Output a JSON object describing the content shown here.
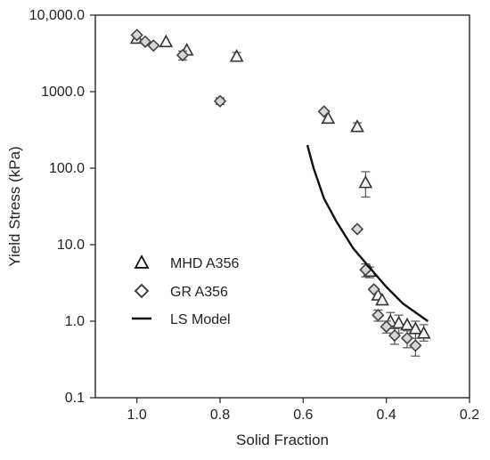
{
  "chart_data": {
    "type": "scatter",
    "title": "",
    "xlabel": "Solid Fraction",
    "ylabel": "Yield Stress (kPa)",
    "x_reversed": true,
    "xlim": [
      1.1,
      0.2
    ],
    "ylim": [
      0.1,
      10000
    ],
    "yscale": "log",
    "grid": false,
    "legend_position": "lower-left",
    "x_ticks": [
      {
        "value": 1.0,
        "label": "1.0"
      },
      {
        "value": 0.8,
        "label": "0.8"
      },
      {
        "value": 0.6,
        "label": "0.6"
      },
      {
        "value": 0.4,
        "label": "0.4"
      },
      {
        "value": 0.2,
        "label": "0.2"
      }
    ],
    "y_ticks": [
      {
        "value": 0.1,
        "label": "0.1"
      },
      {
        "value": 1,
        "label": "1.0"
      },
      {
        "value": 10,
        "label": "10.0"
      },
      {
        "value": 100,
        "label": "100.0"
      },
      {
        "value": 1000,
        "label": "1000.0"
      },
      {
        "value": 10000,
        "label": "10,000.0"
      }
    ],
    "series": [
      {
        "name": "MHD A356",
        "marker": "triangle",
        "color": "#333333",
        "points": [
          {
            "x": 1.0,
            "y": 5000,
            "err": [
              4600,
              5600
            ]
          },
          {
            "x": 0.93,
            "y": 4500,
            "err": null
          },
          {
            "x": 0.88,
            "y": 3500,
            "err": null
          },
          {
            "x": 0.76,
            "y": 2900,
            "err": [
              2650,
              3250
            ]
          },
          {
            "x": 0.54,
            "y": 450,
            "err": null
          },
          {
            "x": 0.47,
            "y": 350,
            "err": [
              330,
              390
            ]
          },
          {
            "x": 0.45,
            "y": 65,
            "err": [
              42,
              90
            ]
          },
          {
            "x": 0.44,
            "y": 4.5,
            "err": [
              3.7,
              5.1
            ]
          },
          {
            "x": 0.42,
            "y": 2.2,
            "err": null
          },
          {
            "x": 0.41,
            "y": 1.9,
            "err": null
          },
          {
            "x": 0.39,
            "y": 1.0,
            "err": [
              0.8,
              1.3
            ]
          },
          {
            "x": 0.37,
            "y": 0.95,
            "err": [
              0.7,
              1.2
            ]
          },
          {
            "x": 0.35,
            "y": 0.9,
            "err": null
          },
          {
            "x": 0.33,
            "y": 0.8,
            "err": [
              0.6,
              1.0
            ]
          },
          {
            "x": 0.31,
            "y": 0.7,
            "err": [
              0.55,
              0.9
            ]
          }
        ]
      },
      {
        "name": "GR A356",
        "marker": "diamond",
        "color": "#444444",
        "points": [
          {
            "x": 1.0,
            "y": 5500,
            "err": null
          },
          {
            "x": 0.98,
            "y": 4500,
            "err": null
          },
          {
            "x": 0.96,
            "y": 4000,
            "err": null
          },
          {
            "x": 0.89,
            "y": 3000,
            "err": [
              2600,
              3400
            ]
          },
          {
            "x": 0.8,
            "y": 750,
            "err": [
              680,
              830
            ]
          },
          {
            "x": 0.55,
            "y": 550,
            "err": null
          },
          {
            "x": 0.47,
            "y": 16,
            "err": null
          },
          {
            "x": 0.45,
            "y": 4.7,
            "err": [
              3.8,
              5.6
            ]
          },
          {
            "x": 0.43,
            "y": 2.6,
            "err": null
          },
          {
            "x": 0.42,
            "y": 1.2,
            "err": [
              1.0,
              1.4
            ]
          },
          {
            "x": 0.4,
            "y": 0.85,
            "err": [
              0.7,
              1.0
            ]
          },
          {
            "x": 0.38,
            "y": 0.65,
            "err": [
              0.5,
              0.8
            ]
          },
          {
            "x": 0.35,
            "y": 0.6,
            "err": [
              0.45,
              0.75
            ]
          },
          {
            "x": 0.33,
            "y": 0.48,
            "err": [
              0.35,
              0.6
            ]
          }
        ]
      },
      {
        "name": "LS Model",
        "type": "line",
        "color": "#111111",
        "points": [
          {
            "x": 0.59,
            "y": 200
          },
          {
            "x": 0.575,
            "y": 100
          },
          {
            "x": 0.55,
            "y": 40
          },
          {
            "x": 0.52,
            "y": 20
          },
          {
            "x": 0.48,
            "y": 9
          },
          {
            "x": 0.44,
            "y": 5
          },
          {
            "x": 0.4,
            "y": 2.8
          },
          {
            "x": 0.36,
            "y": 1.7
          },
          {
            "x": 0.3,
            "y": 1.0
          }
        ]
      }
    ]
  }
}
